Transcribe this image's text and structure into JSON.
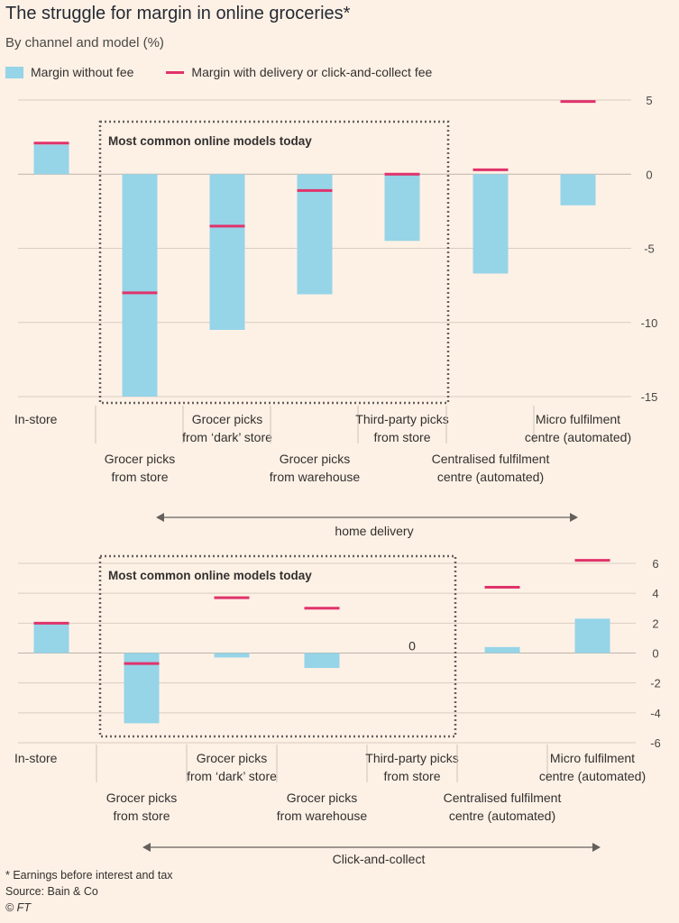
{
  "title": "The struggle for margin in online groceries*",
  "subtitle": "By channel and model (%)",
  "legend": {
    "bar_label": "Margin without fee",
    "line_label": "Margin with delivery or click-and-collect fee"
  },
  "colors": {
    "bar": "#96d4e8",
    "fee": "#e0336b",
    "grid": "#d9cdc1",
    "box": "#66605c"
  },
  "chart_data": [
    {
      "type": "bar",
      "ylim": [
        -15,
        5
      ],
      "yticks": [
        5,
        0,
        -5,
        -10,
        -15
      ],
      "ytick_labels": [
        "5",
        "0",
        "-5",
        "-10",
        "-15"
      ],
      "grid": true,
      "legend_position": "top-left",
      "box_label": "Most common online models today",
      "group_label": "home delivery",
      "categories": [
        [
          "In-store"
        ],
        [
          "Grocer picks",
          "from store"
        ],
        [
          "Grocer picks",
          "from ‘dark’ store"
        ],
        [
          "Grocer picks",
          "from warehouse"
        ],
        [
          "Third-party picks",
          "from store"
        ],
        [
          "Centralised fulfilment",
          "centre (automated)"
        ],
        [
          "Micro fulfilment",
          "centre (automated)"
        ]
      ],
      "series": [
        {
          "name": "Margin without fee",
          "values": [
            2.0,
            -15.0,
            -10.5,
            -8.1,
            -4.5,
            -6.7,
            -2.1
          ]
        },
        {
          "name": "Margin with delivery or click-and-collect fee",
          "values": [
            2.1,
            -8.0,
            -3.5,
            -1.1,
            0.0,
            0.3,
            4.9
          ]
        }
      ],
      "annotations": []
    },
    {
      "type": "bar",
      "ylim": [
        -6,
        6
      ],
      "yticks": [
        6,
        4,
        2,
        0,
        -2,
        -4,
        -6
      ],
      "ytick_labels": [
        "6",
        "4",
        "2",
        "0",
        "-2",
        "-4",
        "-6"
      ],
      "grid": true,
      "box_label": "Most common online models today",
      "group_label": "Click-and-collect",
      "categories": [
        [
          "In-store"
        ],
        [
          "Grocer picks",
          "from store"
        ],
        [
          "Grocer picks",
          "from ‘dark’ store"
        ],
        [
          "Grocer picks",
          "from warehouse"
        ],
        [
          "Third-party picks",
          "from store"
        ],
        [
          "Centralised fulfilment",
          "centre (automated)"
        ],
        [
          "Micro fulfilment",
          "centre (automated)"
        ]
      ],
      "series": [
        {
          "name": "Margin without fee",
          "values": [
            2.0,
            -4.7,
            -0.3,
            -1.0,
            null,
            0.4,
            2.3
          ]
        },
        {
          "name": "Margin with delivery or click-and-collect fee",
          "values": [
            2.0,
            -0.7,
            3.7,
            3.0,
            null,
            4.4,
            6.2
          ]
        }
      ],
      "annotations": [
        {
          "category_index": 4,
          "text": "0"
        }
      ]
    }
  ],
  "footer": {
    "note": "* Earnings before interest and tax",
    "source": "Source: Bain & Co",
    "credit": "© FT"
  }
}
